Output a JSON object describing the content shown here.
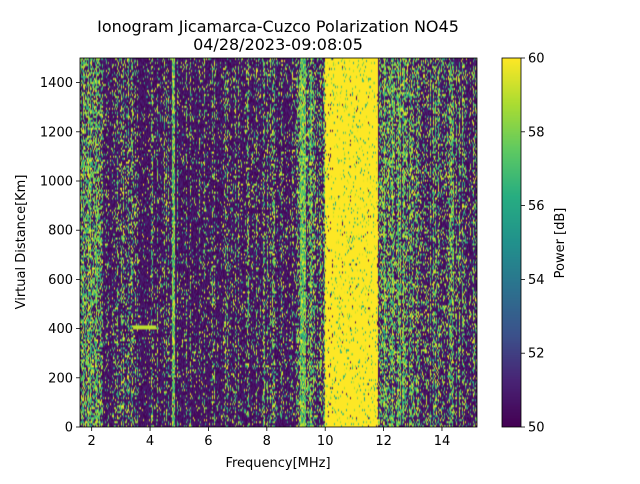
{
  "chart_data": {
    "type": "heatmap",
    "title": "Ionogram Jicamarca-Cuzco Polarization NO45",
    "subtitle": "04/28/2023-09:08:05",
    "xlabel": "Frequency[MHz]",
    "ylabel": "Virtual Distance[Km]",
    "xlim": [
      1.6,
      15.2
    ],
    "ylim": [
      0,
      1500
    ],
    "xticks": [
      2,
      4,
      6,
      8,
      10,
      12,
      14
    ],
    "yticks": [
      0,
      200,
      400,
      600,
      800,
      1000,
      1200,
      1400
    ],
    "colorbar": {
      "label": "Power [dB]",
      "range": [
        50,
        60
      ],
      "ticks": [
        50,
        52,
        54,
        56,
        58,
        60
      ],
      "colormap": "viridis"
    },
    "features": {
      "saturated_band_MHz": [
        10.0,
        11.8
      ],
      "trace_400km_MHz": [
        3.4,
        4.2
      ],
      "strong_lines_MHz": [
        4.8,
        9.2,
        9.3
      ]
    },
    "colors": {
      "low": "#440154",
      "high": "#fde725"
    }
  }
}
